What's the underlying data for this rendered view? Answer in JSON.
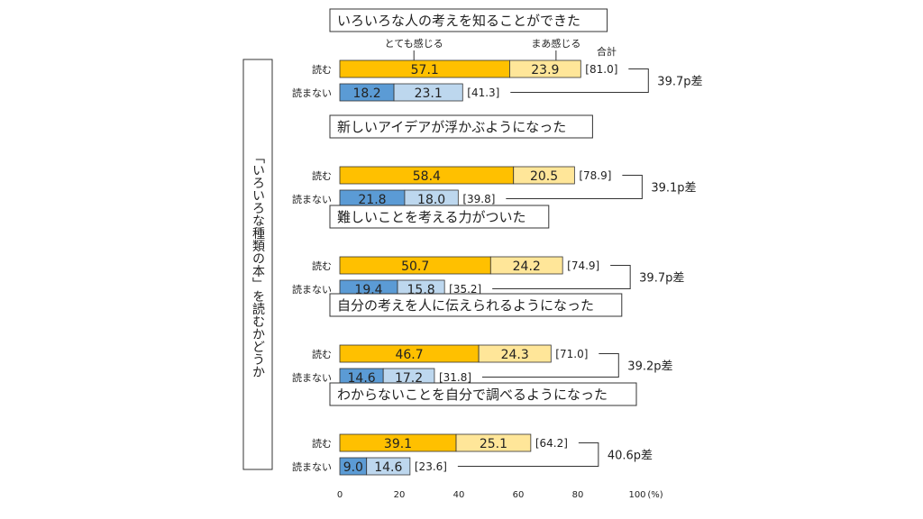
{
  "chart_data": {
    "type": "bar",
    "stacked": true,
    "orientation": "horizontal",
    "y_group_label": "「いろいろな種類の本」を読むかどうか",
    "legend": {
      "strong": "とても感じる",
      "some": "まあ感じる",
      "total": "合計"
    },
    "row_labels": {
      "read": "読む",
      "notread": "読まない"
    },
    "xlim": [
      0,
      100
    ],
    "x_ticks": [
      0,
      20,
      40,
      60,
      80,
      100
    ],
    "x_unit": "(%)",
    "colors": {
      "read_strong": "#FFC000",
      "read_some": "#FFE699",
      "notread_strong": "#5B9BD5",
      "notread_some": "#BDD7EE"
    },
    "groups": [
      {
        "title": "いろいろな人の考えを知ることができた",
        "read": {
          "strong": "57.1",
          "some": "23.9",
          "total": "[81.0]"
        },
        "notread": {
          "strong": "18.2",
          "some": "23.1",
          "total": "[41.3]"
        },
        "diff": "39.7p差"
      },
      {
        "title": "新しいアイデアが浮かぶようになった",
        "read": {
          "strong": "58.4",
          "some": "20.5",
          "total": "[78.9]"
        },
        "notread": {
          "strong": "21.8",
          "some": "18.0",
          "total": "[39.8]"
        },
        "diff": "39.1p差"
      },
      {
        "title": "難しいことを考える力がついた",
        "read": {
          "strong": "50.7",
          "some": "24.2",
          "total": "[74.9]"
        },
        "notread": {
          "strong": "19.4",
          "some": "15.8",
          "total": "[35.2]"
        },
        "diff": "39.7p差"
      },
      {
        "title": "自分の考えを人に伝えられるようになった",
        "read": {
          "strong": "46.7",
          "some": "24.3",
          "total": "[71.0]"
        },
        "notread": {
          "strong": "14.6",
          "some": "17.2",
          "total": "[31.8]"
        },
        "diff": "39.2p差"
      },
      {
        "title": "わからないことを自分で調べるようになった",
        "read": {
          "strong": "39.1",
          "some": "25.1",
          "total": "[64.2]"
        },
        "notread": {
          "strong": "9.0",
          "some": "14.6",
          "total": "[23.6]"
        },
        "diff": "40.6p差"
      }
    ]
  }
}
